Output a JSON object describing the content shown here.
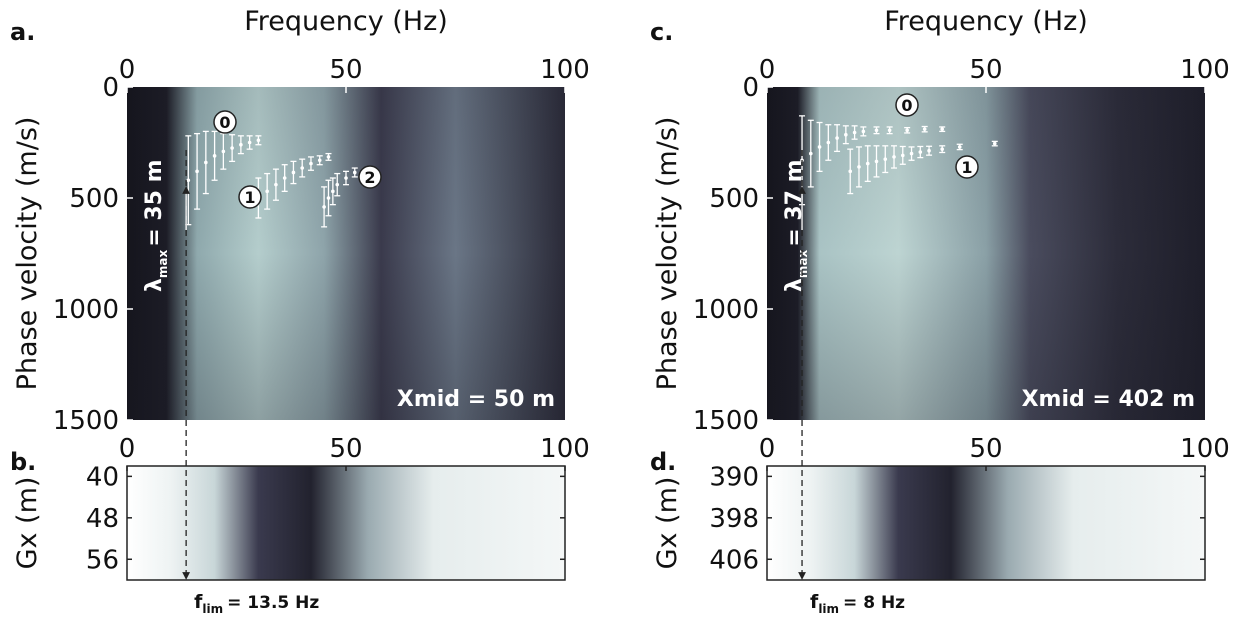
{
  "chart_data": [
    {
      "type": "errorbar",
      "panel_label": "a.",
      "x_label": "Frequency (Hz)",
      "y_label": "Phase velocity (m/s)",
      "xlim": [
        0,
        100
      ],
      "xticks": [
        0,
        50,
        100
      ],
      "ylim": [
        1500,
        0
      ],
      "yticks": [
        0,
        500,
        1000,
        1500
      ],
      "annotation": "Xmid = 50 m",
      "lambda_symbol": "λ",
      "lambda_sub": "max",
      "lambda_value": "= 35 m",
      "series": [
        {
          "name": "0",
          "color": "#ffffff",
          "x": [
            14,
            16,
            18,
            20,
            22,
            24,
            26,
            28,
            30
          ],
          "values": [
            420,
            380,
            340,
            310,
            290,
            275,
            260,
            250,
            240
          ],
          "errors": [
            200,
            170,
            140,
            110,
            80,
            60,
            40,
            30,
            20
          ]
        },
        {
          "name": "1",
          "color": "#ffffff",
          "x": [
            30,
            32,
            34,
            36,
            38,
            40,
            42,
            44,
            46
          ],
          "values": [
            500,
            470,
            440,
            410,
            385,
            365,
            345,
            330,
            315
          ],
          "errors": [
            90,
            80,
            70,
            60,
            50,
            40,
            30,
            20,
            15
          ]
        },
        {
          "name": "2",
          "color": "#ffffff",
          "x": [
            45,
            46,
            47,
            48,
            50,
            52
          ],
          "values": [
            540,
            500,
            470,
            440,
            410,
            385
          ],
          "errors": [
            90,
            80,
            60,
            50,
            30,
            20
          ]
        }
      ]
    },
    {
      "type": "heatmap",
      "panel_label": "b.",
      "y_label": "Gx (m)",
      "xlim": [
        0,
        100
      ],
      "xticks": [
        0,
        50,
        100
      ],
      "ylim": [
        60,
        38
      ],
      "yticks": [
        40,
        48,
        56
      ],
      "f_lim": {
        "value": 13.5,
        "symbol": "f",
        "sub": "lim",
        "label": "= 13.5 Hz"
      }
    },
    {
      "type": "errorbar",
      "panel_label": "c.",
      "x_label": "Frequency (Hz)",
      "y_label": "Phase velocity (m/s)",
      "xlim": [
        0,
        100
      ],
      "xticks": [
        0,
        50,
        100
      ],
      "ylim": [
        1500,
        0
      ],
      "yticks": [
        0,
        500,
        1000,
        1500
      ],
      "annotation": "Xmid = 402 m",
      "lambda_symbol": "λ",
      "lambda_sub": "max",
      "lambda_value": "= 37 m",
      "series": [
        {
          "name": "0",
          "color": "#ffffff",
          "x": [
            8,
            10,
            12,
            14,
            16,
            18,
            20,
            22,
            25,
            28,
            32,
            36,
            40
          ],
          "values": [
            330,
            300,
            270,
            250,
            230,
            215,
            205,
            200,
            195,
            195,
            195,
            190,
            190
          ],
          "errors": [
            200,
            150,
            110,
            80,
            60,
            40,
            30,
            20,
            15,
            15,
            12,
            12,
            10
          ]
        },
        {
          "name": "1",
          "color": "#ffffff",
          "x": [
            19,
            21,
            23,
            25,
            27,
            29,
            31,
            33,
            35,
            37,
            40,
            44,
            52
          ],
          "values": [
            380,
            360,
            345,
            335,
            325,
            315,
            308,
            300,
            293,
            287,
            280,
            270,
            255
          ],
          "errors": [
            100,
            90,
            80,
            70,
            60,
            50,
            40,
            30,
            25,
            20,
            15,
            12,
            10
          ]
        }
      ]
    },
    {
      "type": "heatmap",
      "panel_label": "d.",
      "y_label": "Gx (m)",
      "xlim": [
        0,
        100
      ],
      "xticks": [
        0,
        50,
        100
      ],
      "ylim": [
        410,
        388
      ],
      "yticks": [
        390,
        398,
        406
      ],
      "f_lim": {
        "value": 8,
        "symbol": "f",
        "sub": "lim",
        "label": "= 8 Hz"
      }
    }
  ]
}
